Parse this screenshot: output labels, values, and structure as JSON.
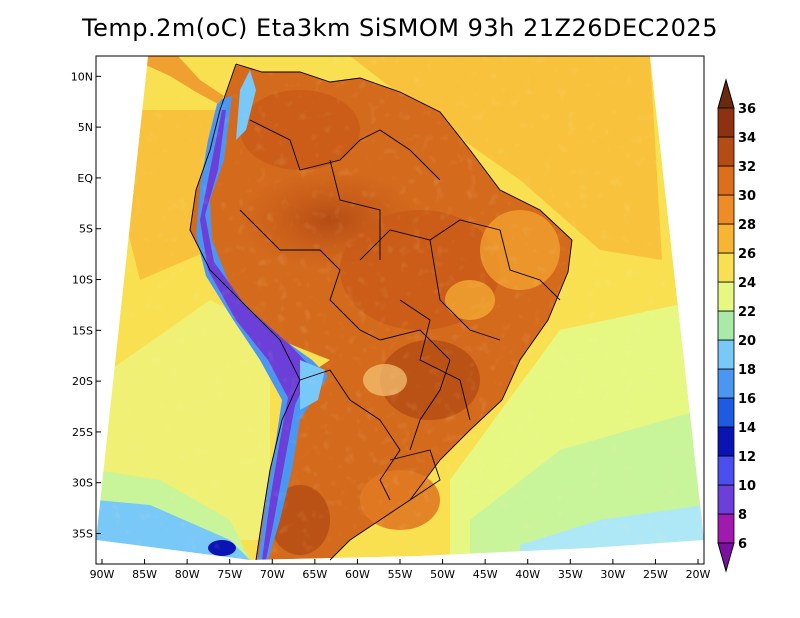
{
  "title": "Temp.2m(oC) Eta3km SiSMOM 93h 21Z26DEC2025",
  "map": {
    "variable": "2m temperature",
    "units": "oC",
    "lon_range": [
      -90,
      -20
    ],
    "lat_range": [
      -38,
      12
    ],
    "lat_ticks": [
      {
        "value": 10,
        "label": "10N"
      },
      {
        "value": 5,
        "label": "5N"
      },
      {
        "value": 0,
        "label": "EQ"
      },
      {
        "value": -5,
        "label": "5S"
      },
      {
        "value": -10,
        "label": "10S"
      },
      {
        "value": -15,
        "label": "15S"
      },
      {
        "value": -20,
        "label": "20S"
      },
      {
        "value": -25,
        "label": "25S"
      },
      {
        "value": -30,
        "label": "30S"
      },
      {
        "value": -35,
        "label": "35S"
      }
    ],
    "lon_ticks": [
      {
        "value": -90,
        "label": "90W"
      },
      {
        "value": -85,
        "label": "85W"
      },
      {
        "value": -80,
        "label": "80W"
      },
      {
        "value": -75,
        "label": "75W"
      },
      {
        "value": -70,
        "label": "70W"
      },
      {
        "value": -65,
        "label": "65W"
      },
      {
        "value": -60,
        "label": "60W"
      },
      {
        "value": -55,
        "label": "55W"
      },
      {
        "value": -50,
        "label": "50W"
      },
      {
        "value": -45,
        "label": "45W"
      },
      {
        "value": -40,
        "label": "40W"
      },
      {
        "value": -35,
        "label": "35W"
      },
      {
        "value": -30,
        "label": "30W"
      },
      {
        "value": -25,
        "label": "25W"
      },
      {
        "value": -20,
        "label": "20W"
      }
    ]
  },
  "colorbar": {
    "levels": [
      6,
      8,
      10,
      12,
      14,
      16,
      18,
      20,
      22,
      24,
      26,
      28,
      30,
      32,
      34,
      36
    ],
    "labels": [
      "6",
      "8",
      "10",
      "12",
      "14",
      "16",
      "18",
      "20",
      "22",
      "24",
      "26",
      "28",
      "30",
      "32",
      "34",
      "36"
    ],
    "colors": [
      "#a01ab0",
      "#6c3fd8",
      "#4b4ff0",
      "#0a14b4",
      "#1e5be0",
      "#4b96f0",
      "#78c8f8",
      "#aaeaa8",
      "#e6f882",
      "#f8e050",
      "#f8b434",
      "#f08c28",
      "#dc6e1c",
      "#b44c14",
      "#8c3210"
    ],
    "under_color": "#7a10a0",
    "over_color": "#6a2a0c"
  }
}
